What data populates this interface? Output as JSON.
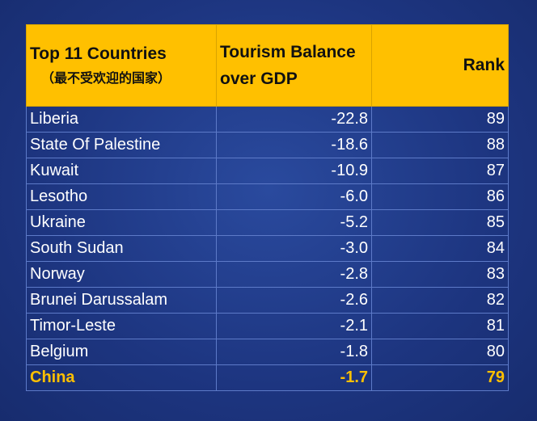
{
  "table": {
    "header": {
      "col1_line1": "Top 11 Countries",
      "col1_line2": "（最不受欢迎的国家）",
      "col2": "Tourism Balance over GDP",
      "col3": "Rank"
    },
    "highlight_color": "#ffc000"
  },
  "chart_data": {
    "type": "table",
    "columns": [
      "Top 11 Countries（最不受欢迎的国家）",
      "Tourism Balance over GDP",
      "Rank"
    ],
    "rows": [
      {
        "country": "Liberia",
        "value": "-22.8",
        "rank": "89"
      },
      {
        "country": "State Of Palestine",
        "value": "-18.6",
        "rank": "88"
      },
      {
        "country": "Kuwait",
        "value": "-10.9",
        "rank": "87"
      },
      {
        "country": "Lesotho",
        "value": "-6.0",
        "rank": "86"
      },
      {
        "country": "Ukraine",
        "value": "-5.2",
        "rank": "85"
      },
      {
        "country": "South Sudan",
        "value": "-3.0",
        "rank": "84"
      },
      {
        "country": "Norway",
        "value": "-2.8",
        "rank": "83"
      },
      {
        "country": "Brunei Darussalam",
        "value": "-2.6",
        "rank": "82"
      },
      {
        "country": "Timor-Leste",
        "value": "-2.1",
        "rank": "81"
      },
      {
        "country": "Belgium",
        "value": "-1.8",
        "rank": "80"
      },
      {
        "country": "China",
        "value": "-1.7",
        "rank": "79",
        "highlight": true
      }
    ]
  }
}
